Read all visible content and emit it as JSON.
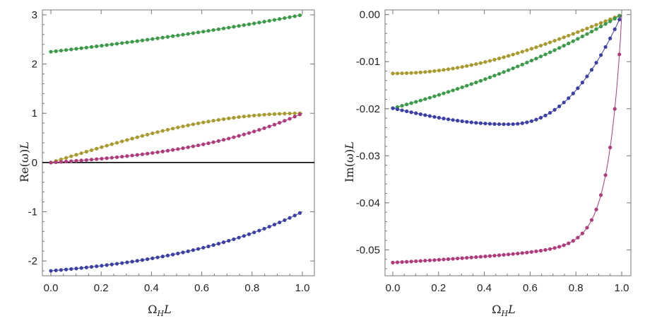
{
  "chart_data": [
    {
      "type": "scatter",
      "title": "",
      "xlabel": "Ω_H L",
      "ylabel": "Re(ω) L",
      "xlim": [
        0.0,
        1.0
      ],
      "ylim": [
        -2.3,
        3.1
      ],
      "xticks": [
        "0.0",
        "0.2",
        "0.4",
        "0.6",
        "0.8",
        "1.0"
      ],
      "yticks": [
        "-2",
        "-1",
        "0",
        "1",
        "2",
        "3"
      ],
      "zero_line": true,
      "series": [
        {
          "name": "green",
          "color": "#3a9a48",
          "start": 2.25,
          "end": 3.0,
          "shape": "exp",
          "k": 0.5
        },
        {
          "name": "olive",
          "color": "#a99a2e",
          "start": 0.0,
          "end": 1.0,
          "shape": "sin",
          "k": 1.0
        },
        {
          "name": "magenta",
          "color": "#b03a7c",
          "start": 0.0,
          "end": 1.0,
          "shape": "exp",
          "k": 2.0
        },
        {
          "name": "blue",
          "color": "#3c3fa6",
          "start": -2.2,
          "end": -1.0,
          "shape": "exp",
          "k": 1.8
        }
      ]
    },
    {
      "type": "scatter",
      "title": "",
      "xlabel": "Ω_H L",
      "ylabel": "Im(ω) L",
      "xlim": [
        0.0,
        1.0
      ],
      "ylim": [
        -0.0555,
        0.001
      ],
      "xticks": [
        "0.0",
        "0.2",
        "0.4",
        "0.6",
        "0.8",
        "1.0"
      ],
      "yticks": [
        "0.00",
        "-0.01",
        "-0.02",
        "-0.03",
        "-0.04",
        "-0.05"
      ],
      "series": [
        {
          "name": "olive",
          "color": "#a99a2e",
          "start": -0.0125,
          "end": 0.0,
          "shape": "cos",
          "k": 1.0
        },
        {
          "name": "green",
          "color": "#3a9a48",
          "start": -0.0199,
          "end": 0.0,
          "shape": "exp",
          "k": 0.8
        },
        {
          "name": "blue",
          "color": "#3c3fa6",
          "start": -0.0199,
          "end": 0.0,
          "shape": "bowl",
          "min": -0.0233
        },
        {
          "name": "magenta",
          "color": "#b03a7c",
          "start": -0.0527,
          "end": 0.0,
          "shape": "steep",
          "k": 0.35
        }
      ]
    }
  ],
  "labels": {
    "left": {
      "ylabel_main": "Re(ω)",
      "ylabel_sub": "L",
      "xlabel_main": "Ω",
      "xlabel_sub": "H",
      "xlabel_tail": "L"
    },
    "right": {
      "ylabel_main": "Im(ω)",
      "ylabel_sub": "L",
      "xlabel_main": "Ω",
      "xlabel_sub": "H",
      "xlabel_tail": "L"
    }
  }
}
